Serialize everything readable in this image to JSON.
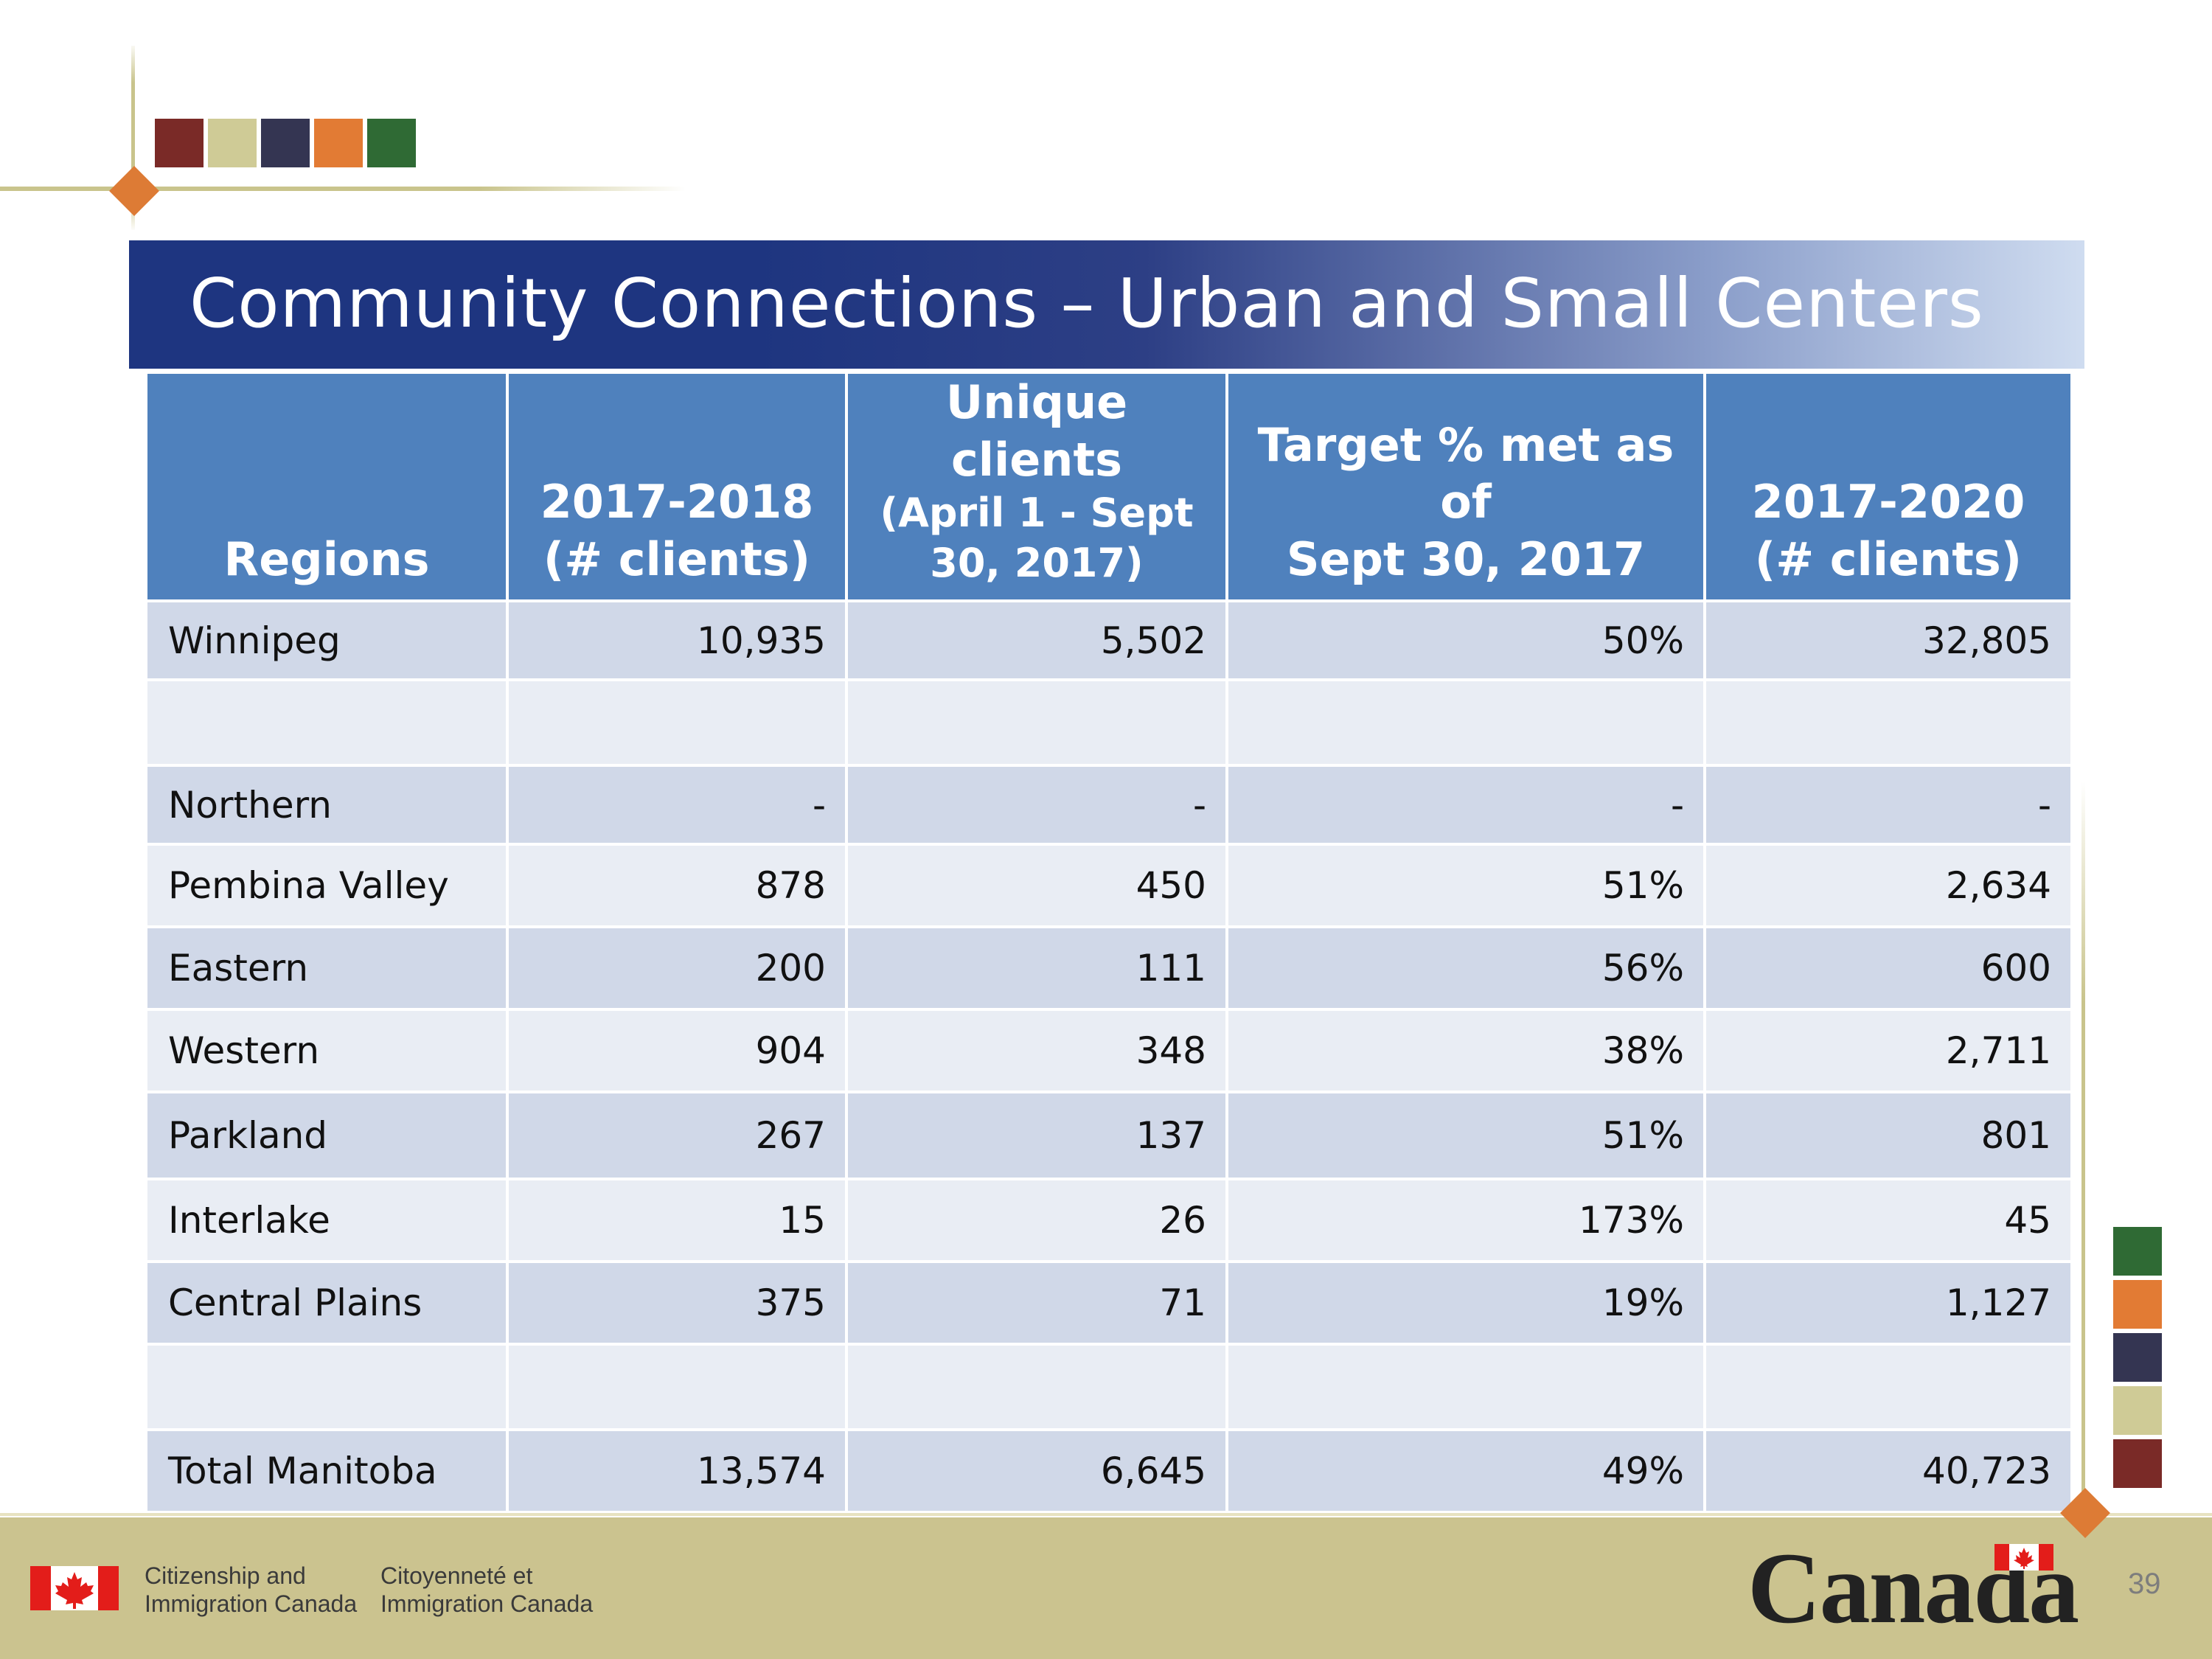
{
  "slide": {
    "title": "Community Connections – Urban and Small Centers",
    "page_number": "39"
  },
  "colors": {
    "squares": [
      "#7a2a27",
      "#cfcb96",
      "#343552",
      "#e27b34",
      "#2f6a34"
    ],
    "banner": "#1e3580",
    "header": "#4f81bd",
    "row_dark": "#d0d8e8",
    "row_light": "#e9edf4",
    "footer": "#cbc38f",
    "accent_diamond": "#dd7b35"
  },
  "table": {
    "headers": {
      "regions": "Regions",
      "c1_line1": "2017-2018",
      "c1_line2": "(# clients)",
      "c2_line1": "Unique clients",
      "c2_line2": "(April 1 - Sept",
      "c2_line3": "30, 2017)",
      "c3_line1": "Target % met as of",
      "c3_line2": "Sept 30, 2017",
      "c4_line1": "2017-2020",
      "c4_line2": "(# clients)"
    },
    "rows": [
      {
        "region": "Winnipeg",
        "y2017_2018": "10,935",
        "unique": "5,502",
        "target": "50%",
        "y2017_2020": "32,805"
      },
      {
        "region": "",
        "y2017_2018": "",
        "unique": "",
        "target": "",
        "y2017_2020": ""
      },
      {
        "region": "Northern",
        "y2017_2018": "-",
        "unique": "-",
        "target": "-",
        "y2017_2020": "-"
      },
      {
        "region": "Pembina Valley",
        "y2017_2018": "878",
        "unique": "450",
        "target": "51%",
        "y2017_2020": "2,634"
      },
      {
        "region": "Eastern",
        "y2017_2018": "200",
        "unique": "111",
        "target": "56%",
        "y2017_2020": "600"
      },
      {
        "region": "Western",
        "y2017_2018": "904",
        "unique": "348",
        "target": "38%",
        "y2017_2020": "2,711"
      },
      {
        "region": "Parkland",
        "y2017_2018": "267",
        "unique": "137",
        "target": "51%",
        "y2017_2020": "801"
      },
      {
        "region": "Interlake",
        "y2017_2018": "15",
        "unique": "26",
        "target": "173%",
        "y2017_2020": "45"
      },
      {
        "region": "Central Plains",
        "y2017_2018": "375",
        "unique": "71",
        "target": "19%",
        "y2017_2020": "1,127"
      },
      {
        "region": "",
        "y2017_2018": "",
        "unique": "",
        "target": "",
        "y2017_2020": ""
      },
      {
        "region": "Total Manitoba",
        "y2017_2018": "13,574",
        "unique": "6,645",
        "target": "49%",
        "y2017_2020": "40,723"
      }
    ]
  },
  "footer": {
    "dept_en_line1": "Citizenship and",
    "dept_en_line2": "Immigration Canada",
    "dept_fr_line1": "Citoyenneté et",
    "dept_fr_line2": "Immigration Canada",
    "wordmark": "Canada"
  }
}
